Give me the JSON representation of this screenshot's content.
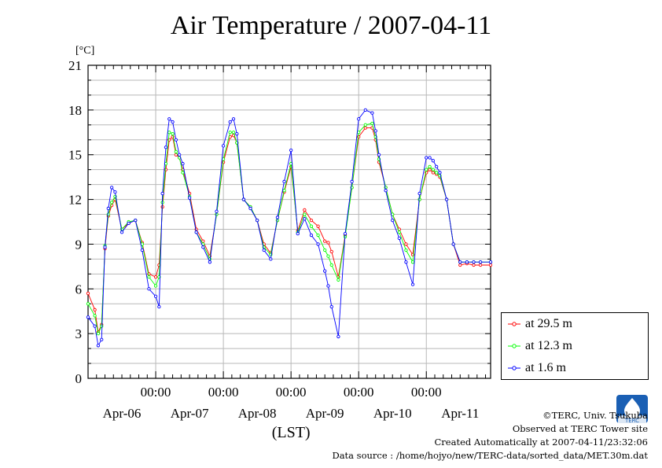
{
  "chart_data": {
    "type": "line",
    "title": "Air Temperature / 2007-04-11",
    "yunit": "[°C]",
    "xlabel": "(LST)",
    "ylim": [
      0,
      21
    ],
    "yticks": [
      0,
      3,
      6,
      9,
      12,
      15,
      18,
      21
    ],
    "xlim": [
      0,
      5.95
    ],
    "time_ticks": [
      1,
      2,
      3,
      4,
      5
    ],
    "time_tick_label": "00:00",
    "date_labels": [
      "Apr-06",
      "Apr-07",
      "Apr-08",
      "Apr-09",
      "Apr-10",
      "Apr-11"
    ],
    "grid": true,
    "legend_position": "right-outside-bottom",
    "x_days": [
      0.0,
      0.1,
      0.15,
      0.2,
      0.25,
      0.3,
      0.35,
      0.4,
      0.5,
      0.6,
      0.7,
      0.8,
      0.9,
      1.0,
      1.05,
      1.1,
      1.15,
      1.2,
      1.25,
      1.3,
      1.35,
      1.4,
      1.5,
      1.6,
      1.7,
      1.8,
      1.9,
      2.0,
      2.1,
      2.15,
      2.2,
      2.3,
      2.4,
      2.5,
      2.6,
      2.7,
      2.8,
      2.9,
      3.0,
      3.1,
      3.2,
      3.3,
      3.4,
      3.5,
      3.55,
      3.6,
      3.7,
      3.8,
      3.9,
      4.0,
      4.1,
      4.2,
      4.25,
      4.3,
      4.4,
      4.5,
      4.6,
      4.7,
      4.8,
      4.9,
      5.0,
      5.05,
      5.1,
      5.15,
      5.2,
      5.3,
      5.4,
      5.5,
      5.6,
      5.7,
      5.8,
      5.95
    ],
    "series": [
      {
        "name": "at 29.5 m",
        "color": "#ff0000",
        "values": [
          5.7,
          4.6,
          3.1,
          3.6,
          8.7,
          10.9,
          11.6,
          12.0,
          10.0,
          10.4,
          10.6,
          9.1,
          7.0,
          6.8,
          7.6,
          11.5,
          14.0,
          16.0,
          16.2,
          15.0,
          14.8,
          14.0,
          12.4,
          10.0,
          9.2,
          8.2,
          11.0,
          14.5,
          16.2,
          16.3,
          15.8,
          12.0,
          11.5,
          10.6,
          9.0,
          8.4,
          10.6,
          12.5,
          14.2,
          9.9,
          11.3,
          10.6,
          10.2,
          9.2,
          9.1,
          8.5,
          6.8,
          9.6,
          12.8,
          16.2,
          16.8,
          16.8,
          16.0,
          14.5,
          12.8,
          11.0,
          10.0,
          9.0,
          8.3,
          12.0,
          13.8,
          14.0,
          13.8,
          13.7,
          13.5,
          12.0,
          9.0,
          7.6,
          7.7,
          7.6,
          7.6,
          7.6
        ]
      },
      {
        "name": "at 12.3 m",
        "color": "#00ff00",
        "values": [
          5.0,
          4.2,
          3.0,
          3.5,
          8.9,
          11.0,
          11.8,
          12.2,
          10.0,
          10.5,
          10.6,
          9.0,
          6.8,
          6.2,
          6.8,
          11.8,
          14.4,
          16.5,
          16.4,
          15.2,
          14.8,
          13.8,
          12.2,
          9.8,
          9.0,
          8.0,
          11.0,
          14.7,
          16.5,
          16.5,
          15.8,
          12.0,
          11.5,
          10.6,
          8.8,
          8.3,
          10.6,
          12.6,
          14.4,
          9.8,
          11.0,
          10.2,
          9.6,
          8.6,
          8.2,
          7.6,
          6.6,
          9.5,
          12.8,
          16.5,
          17.0,
          17.1,
          16.2,
          14.7,
          12.8,
          11.0,
          9.8,
          8.6,
          7.8,
          12.0,
          14.0,
          14.2,
          14.0,
          13.8,
          13.6,
          12.0,
          9.0,
          7.8,
          7.8,
          7.8,
          7.8,
          7.8
        ]
      },
      {
        "name": "at 1.6 m",
        "color": "#0000ff",
        "values": [
          4.1,
          3.5,
          2.2,
          2.6,
          8.8,
          11.4,
          12.8,
          12.5,
          9.8,
          10.4,
          10.6,
          8.6,
          6.0,
          5.5,
          4.8,
          12.4,
          15.5,
          17.4,
          17.2,
          16.0,
          15.0,
          14.4,
          12.1,
          9.8,
          8.8,
          7.8,
          11.2,
          15.6,
          17.2,
          17.4,
          16.4,
          12.0,
          11.4,
          10.6,
          8.6,
          8.0,
          10.8,
          13.2,
          15.3,
          9.7,
          10.7,
          9.6,
          9.0,
          7.2,
          6.2,
          4.8,
          2.8,
          9.7,
          13.2,
          17.4,
          18.0,
          17.8,
          16.6,
          15.0,
          12.6,
          10.6,
          9.4,
          7.8,
          6.3,
          12.4,
          14.8,
          14.8,
          14.6,
          14.2,
          13.8,
          12.0,
          9.0,
          7.8,
          7.8,
          7.8,
          7.8,
          7.8
        ]
      }
    ]
  },
  "credits": {
    "copyright": "©TERC, Univ. Tsukuba",
    "site": "Observed at TERC Tower site",
    "created": "Created Automatically at 2007-04-11/23:32:06",
    "source": "Data source : /home/hojyo/new/TERC-data/sorted_data/MET.30m.dat",
    "logo_text": "TERC"
  }
}
